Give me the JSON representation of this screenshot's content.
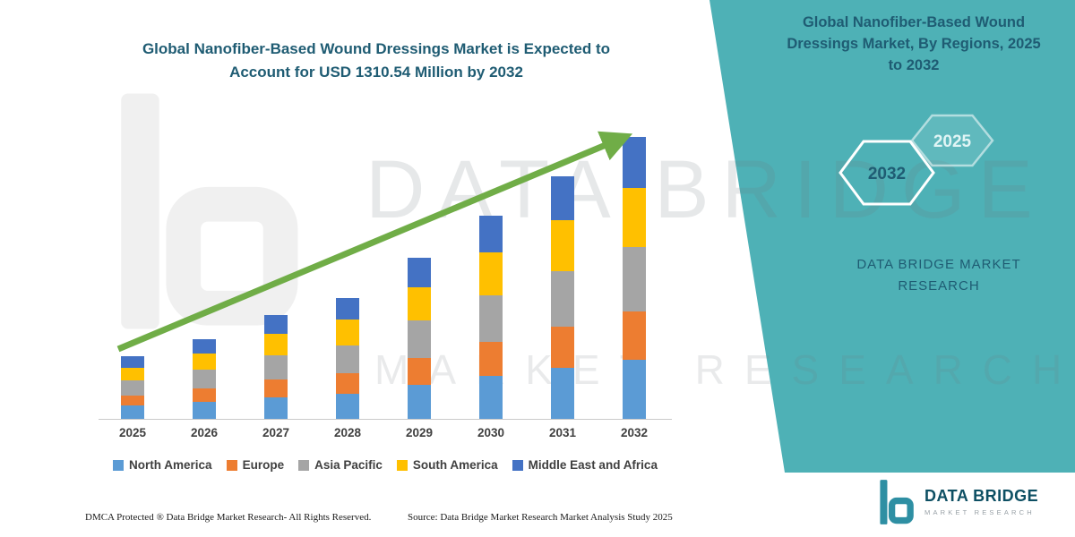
{
  "header": {
    "left_title": "Global Nanofiber-Based Wound Dressings Market is Expected to Account for USD 1310.54 Million by 2032"
  },
  "right_panel": {
    "title": "Global Nanofiber-Based Wound Dressings Market, By Regions, 2025 to 2032",
    "hexagon_labels": [
      "2032",
      "2025"
    ],
    "brand_text": "DATA BRIDGE MARKET RESEARCH"
  },
  "chart_data": {
    "type": "bar",
    "stacked": true,
    "title": "Global Nanofiber-Based Wound Dressings Market is Expected to Account for USD 1310.54 Million by 2032",
    "categories": [
      "2025",
      "2026",
      "2027",
      "2028",
      "2029",
      "2030",
      "2031",
      "2032"
    ],
    "series": [
      {
        "name": "North America",
        "color": "#5B9BD5",
        "values": [
          61,
          78,
          101,
          118,
          157,
          198,
          237,
          275
        ]
      },
      {
        "name": "Europe",
        "color": "#ED7D31",
        "values": [
          49,
          63,
          82,
          95,
          127,
          160,
          192,
          223
        ]
      },
      {
        "name": "Asia Pacific",
        "color": "#A5A5A5",
        "values": [
          67,
          86,
          111,
          129,
          172,
          217,
          259,
          301
        ]
      },
      {
        "name": "South America",
        "color": "#FFC000",
        "values": [
          61,
          78,
          101,
          118,
          157,
          198,
          237,
          275
        ]
      },
      {
        "name": "Middle East and Africa",
        "color": "#4472C4",
        "values": [
          52,
          67,
          87,
          101,
          134,
          170,
          203,
          236.54
        ]
      }
    ],
    "units": "USD Million",
    "total_2032_usd_million": 1310.54,
    "xlabel": "",
    "ylabel": "",
    "ylim": [
      0,
      1400
    ],
    "grid": false,
    "legend_position": "bottom",
    "annotations": [
      "green upward trend arrow from 2025 bar to top of 2032 bar"
    ]
  },
  "watermark": {
    "line1": "DATA BRIDGE",
    "line2": "MARKET RESEARCH"
  },
  "footer": {
    "dmca": "DMCA Protected ® Data Bridge Market Research-  All Rights Reserved.",
    "source": "Source: Data Bridge Market Research  Market Analysis Study 2025"
  },
  "logo": {
    "name": "DATA BRIDGE",
    "tagline": "MARKET RESEARCH"
  },
  "colors": {
    "teal_panel": "#4EB1B6",
    "title_text": "#1F5C73",
    "arrow_green": "#70AD47",
    "axis_line": "#C9C9C9",
    "tick_text": "#404040"
  }
}
